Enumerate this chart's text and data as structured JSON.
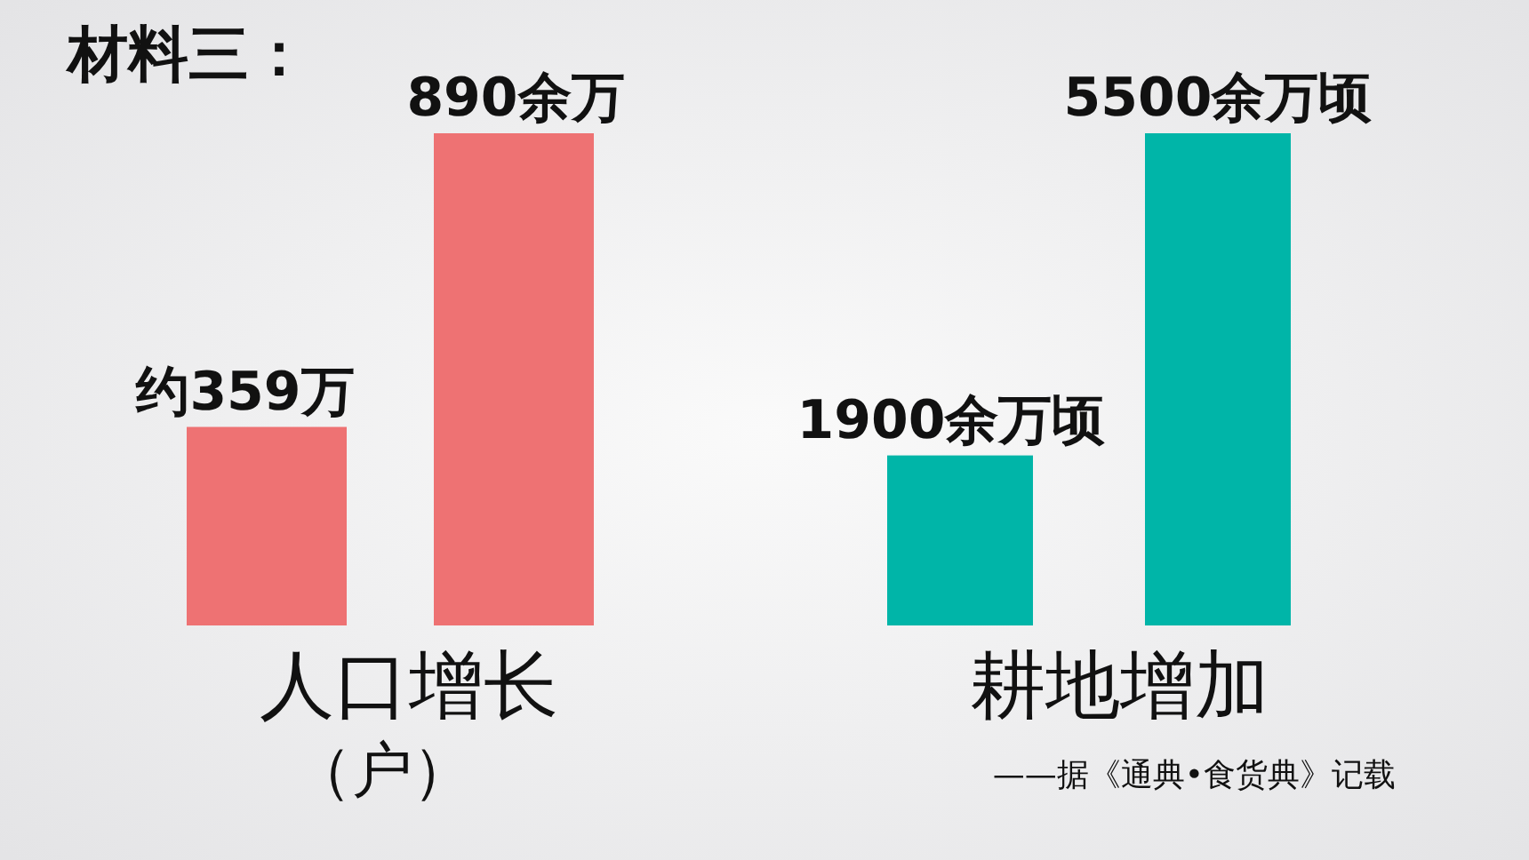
{
  "chart_data": [
    {
      "type": "bar",
      "title": "材料三：",
      "categories": [
        null,
        null
      ],
      "values": [
        359,
        890
      ],
      "color": "#ee7273",
      "value_labels": [
        "约359万",
        "890余万"
      ],
      "xlabel": "人口增长",
      "annotations": [
        "（户）"
      ]
    },
    {
      "type": "bar",
      "categories": [
        null,
        null
      ],
      "values": [
        1900,
        5500
      ],
      "color": "#00b5a8",
      "value_labels": [
        "1900余万顷",
        "5500余万顷"
      ],
      "xlabel": "耕地增加",
      "annotations": [
        "——据《通典•食货典》记载"
      ]
    }
  ]
}
